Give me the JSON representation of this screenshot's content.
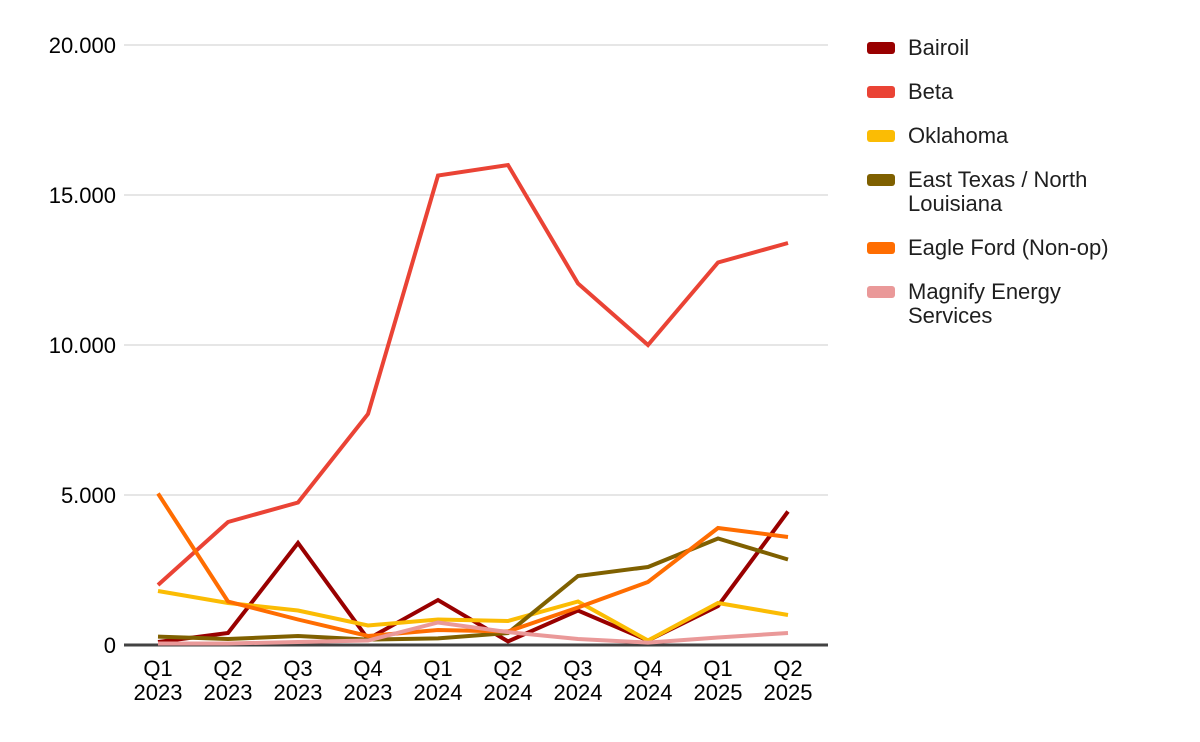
{
  "chart_data": {
    "type": "line",
    "categories": [
      "Q1 2023",
      "Q2 2023",
      "Q3 2023",
      "Q4 2023",
      "Q1 2024",
      "Q2 2024",
      "Q3 2024",
      "Q4 2024",
      "Q1 2025",
      "Q2 2025"
    ],
    "series": [
      {
        "name": "Bairoil",
        "color": "#990000",
        "values": [
          100,
          400,
          3400,
          200,
          1500,
          120,
          1150,
          150,
          1300,
          4450
        ]
      },
      {
        "name": "Beta",
        "color": "#EA4335",
        "values": [
          2000,
          4100,
          4750,
          7700,
          15650,
          16000,
          12050,
          10000,
          12750,
          13400
        ]
      },
      {
        "name": "Oklahoma",
        "color": "#FBBC04",
        "values": [
          1800,
          1400,
          1150,
          650,
          850,
          800,
          1450,
          150,
          1400,
          1000
        ]
      },
      {
        "name": "East Texas / North Louisiana",
        "color": "#7F6000",
        "values": [
          280,
          200,
          300,
          180,
          220,
          400,
          2300,
          2600,
          3550,
          2850
        ]
      },
      {
        "name": "Eagle Ford (Non-op)",
        "color": "#FF6D01",
        "values": [
          5050,
          1450,
          850,
          300,
          500,
          450,
          1250,
          2100,
          3900,
          3600
        ]
      },
      {
        "name": "Magnify Energy Services",
        "color": "#EA9999",
        "values": [
          50,
          50,
          100,
          150,
          750,
          430,
          200,
          80,
          250,
          400
        ]
      }
    ],
    "ylim": [
      0,
      20000
    ],
    "yticks": [
      {
        "value": 0,
        "label": "0"
      },
      {
        "value": 5000,
        "label": "5.000"
      },
      {
        "value": 10000,
        "label": "10.000"
      },
      {
        "value": 15000,
        "label": "15.000"
      },
      {
        "value": 20000,
        "label": "20.000"
      }
    ],
    "xlabel": "",
    "ylabel": "",
    "grid": true,
    "legend_position": "right",
    "colors": {
      "gridline": "#cccccc",
      "baseline": "#424242",
      "tick_text": "#000000",
      "legend_text": "#1f1f1f",
      "background": "#ffffff"
    }
  }
}
